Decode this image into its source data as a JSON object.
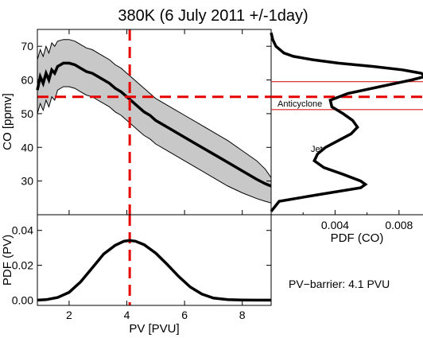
{
  "title": "380K (6 July 2011 +/-1day)",
  "colors": {
    "threshold": "#e60000",
    "band": "#c8c8c8",
    "line": "#000000",
    "hline": "#d42020"
  },
  "chart_data": [
    {
      "type": "line",
      "panel": "main",
      "xlabel": "",
      "ylabel": "CO [ppmv]",
      "xlim": [
        0.9,
        9.0
      ],
      "ylim": [
        20,
        75
      ],
      "yticks": [
        "30",
        "40",
        "50",
        "60",
        "70"
      ],
      "series": [
        {
          "role": "mean",
          "x": [
            0.9,
            1.0,
            1.1,
            1.2,
            1.3,
            1.4,
            1.5,
            1.6,
            1.8,
            2.0,
            2.2,
            2.4,
            2.6,
            2.8,
            3.0,
            3.2,
            3.4,
            3.6,
            3.8,
            4.0,
            4.2,
            4.4,
            4.6,
            4.8,
            5.0,
            5.5,
            6.0,
            6.5,
            7.0,
            7.5,
            8.0,
            8.5,
            8.8,
            9.0
          ],
          "y": [
            57,
            61,
            59,
            62,
            60,
            63,
            62,
            64,
            65,
            65,
            64.5,
            63.5,
            62.5,
            62,
            61,
            60,
            59,
            57.5,
            56.5,
            55,
            53.5,
            52,
            50.5,
            49.5,
            48,
            45.5,
            43,
            40.5,
            38,
            35.5,
            33,
            30.5,
            29.2,
            28.5
          ]
        },
        {
          "role": "upper",
          "x": [
            0.9,
            1.0,
            1.1,
            1.2,
            1.3,
            1.4,
            1.5,
            1.6,
            1.8,
            2.0,
            2.2,
            2.4,
            2.6,
            2.8,
            3.0,
            3.2,
            3.4,
            3.6,
            3.8,
            4.0,
            4.2,
            4.4,
            4.6,
            4.8,
            5.0,
            5.5,
            6.0,
            6.5,
            7.0,
            7.5,
            8.0,
            8.5,
            8.8,
            9.0
          ],
          "y": [
            66,
            69,
            67,
            70,
            68,
            71,
            70,
            71.5,
            72,
            72,
            71.5,
            70.5,
            69.5,
            69,
            68,
            67,
            66,
            64.5,
            63.5,
            62,
            60.5,
            59,
            57.5,
            56,
            54.5,
            52,
            49.5,
            47,
            44.5,
            42,
            39,
            36,
            33.5,
            31
          ]
        },
        {
          "role": "lower",
          "x": [
            0.9,
            1.0,
            1.1,
            1.2,
            1.3,
            1.4,
            1.5,
            1.6,
            1.8,
            2.0,
            2.2,
            2.4,
            2.6,
            2.8,
            3.0,
            3.2,
            3.4,
            3.6,
            3.8,
            4.0,
            4.2,
            4.4,
            4.6,
            4.8,
            5.0,
            5.5,
            6.0,
            6.5,
            7.0,
            7.5,
            8.0,
            8.5,
            8.8,
            9.0
          ],
          "y": [
            50,
            53,
            51,
            54,
            52,
            55,
            54,
            57,
            58,
            58,
            57.5,
            56.5,
            55.5,
            55,
            54,
            53,
            52,
            50.5,
            49.5,
            48,
            46.5,
            45,
            43.5,
            42.5,
            41,
            38.5,
            36,
            33.5,
            31,
            28.5,
            26.5,
            24.8,
            24,
            23.5
          ]
        }
      ],
      "threshold_x": 4.1,
      "threshold_y": 55
    },
    {
      "type": "line",
      "panel": "co_pdf",
      "xlabel": "PDF (CO)",
      "xlim": [
        0.0,
        0.0095
      ],
      "ylim": [
        20,
        75
      ],
      "xticks": [
        "0.004",
        "0.008"
      ],
      "series": [
        {
          "role": "pdf_co",
          "y": [
            21,
            24,
            26,
            28,
            29,
            30,
            32,
            34,
            36,
            38,
            40,
            42,
            44,
            46,
            48,
            50,
            52,
            54,
            56,
            58,
            60,
            61,
            62,
            63,
            64,
            65,
            66,
            67,
            68,
            70,
            72,
            74
          ],
          "x": [
            0.0,
            0.0005,
            0.003,
            0.0056,
            0.0059,
            0.0056,
            0.0045,
            0.0033,
            0.0027,
            0.0029,
            0.0034,
            0.0042,
            0.005,
            0.0054,
            0.0051,
            0.0045,
            0.0038,
            0.0037,
            0.0048,
            0.0068,
            0.0088,
            0.0096,
            0.0094,
            0.0082,
            0.0064,
            0.0042,
            0.0026,
            0.0014,
            0.0008,
            0.0003,
            0.0001,
            0.0
          ]
        }
      ],
      "hlines": [
        59.5,
        51.2
      ],
      "threshold_y": 55,
      "annotations": [
        "Anticyclone",
        "Jet"
      ]
    },
    {
      "type": "line",
      "panel": "pv_pdf",
      "xlabel": "PV [PVU]",
      "ylabel": "PDF (PV)",
      "xlim": [
        0.9,
        9.0
      ],
      "ylim": [
        -0.003,
        0.049
      ],
      "xticks": [
        "2",
        "4",
        "6",
        "8"
      ],
      "yticks": [
        "0.00",
        "0.02",
        "0.04"
      ],
      "series": [
        {
          "role": "pdf_pv",
          "x": [
            0.9,
            1.2,
            1.6,
            2.0,
            2.4,
            2.8,
            3.2,
            3.6,
            3.9,
            4.1,
            4.3,
            4.6,
            5.0,
            5.4,
            5.8,
            6.2,
            6.6,
            7.0,
            7.5,
            8.0,
            8.5,
            9.0
          ],
          "y": [
            0.0,
            0.0003,
            0.0015,
            0.0045,
            0.0105,
            0.0185,
            0.0265,
            0.0315,
            0.0338,
            0.0342,
            0.0338,
            0.0318,
            0.027,
            0.0205,
            0.0135,
            0.0075,
            0.0035,
            0.0012,
            0.0003,
            0.0001,
            0.0,
            0.0
          ]
        }
      ],
      "threshold_x": 4.1
    }
  ],
  "barrier_text": "PV−barrier: 4.1 PVU"
}
